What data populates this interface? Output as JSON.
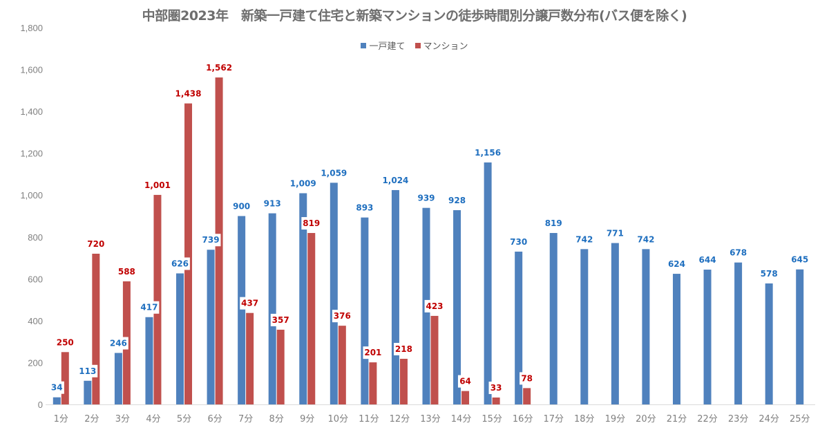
{
  "chart_data": {
    "type": "bar",
    "title": "中部圏2023年　新築一戸建て住宅と新築マンションの徒歩時間別分譲戸数分布(バス便を除く)",
    "xlabel": "",
    "ylabel": "",
    "ylim": [
      0,
      1800
    ],
    "yticks": [
      0,
      200,
      400,
      600,
      800,
      1000,
      1200,
      1400,
      1600,
      1800
    ],
    "ytick_labels": [
      "0",
      "200",
      "400",
      "600",
      "800",
      "1,000",
      "1,200",
      "1,400",
      "1,600",
      "1,800"
    ],
    "grid": false,
    "legend_position": "top-center",
    "categories": [
      "1分",
      "2分",
      "3分",
      "4分",
      "5分",
      "6分",
      "7分",
      "8分",
      "9分",
      "10分",
      "11分",
      "12分",
      "13分",
      "14分",
      "15分",
      "16分",
      "17分",
      "18分",
      "19分",
      "20分",
      "21分",
      "22分",
      "23分",
      "24分",
      "25分"
    ],
    "series": [
      {
        "name": "一戸建て",
        "color": "#4f81bd",
        "label_color": "#1f6fbf",
        "values": [
          34,
          113,
          246,
          417,
          626,
          739,
          900,
          913,
          1009,
          1059,
          893,
          1024,
          939,
          928,
          1156,
          730,
          819,
          742,
          771,
          742,
          624,
          644,
          678,
          578,
          645
        ]
      },
      {
        "name": "マンション",
        "color": "#c0504d",
        "label_color": "#c00000",
        "values": [
          250,
          720,
          588,
          1001,
          1438,
          1562,
          437,
          357,
          819,
          376,
          201,
          218,
          423,
          64,
          33,
          78,
          null,
          null,
          null,
          null,
          null,
          null,
          null,
          null,
          null
        ]
      }
    ]
  }
}
